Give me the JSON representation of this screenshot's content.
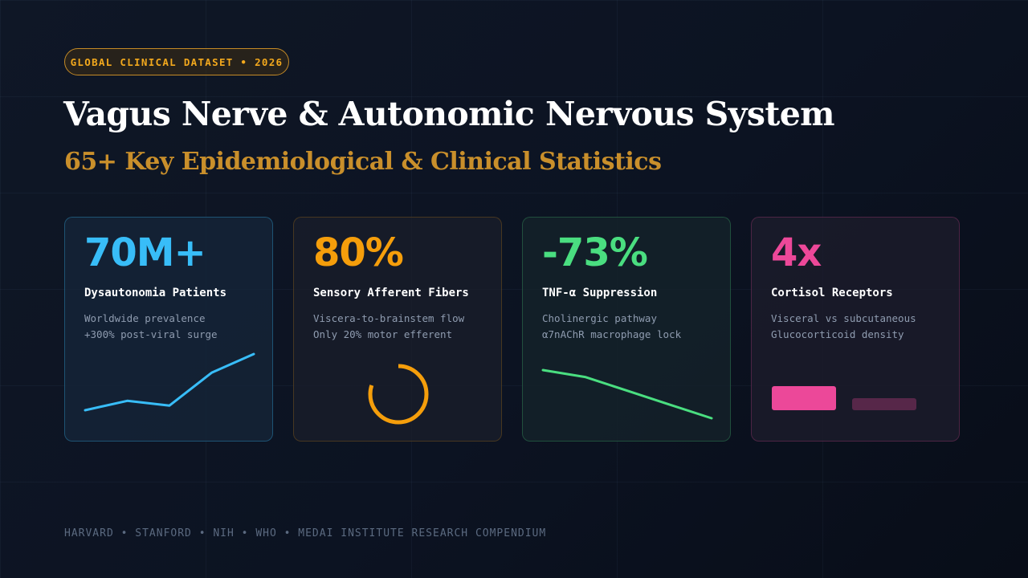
{
  "badge": "GLOBAL CLINICAL DATASET • 2026",
  "title": "Vagus Nerve & Autonomic Nervous System",
  "subtitle": "65+ Key Epidemiological & Clinical Statistics",
  "colors": {
    "blue": "#38bdf8",
    "amber": "#f59e0b",
    "green": "#4ade80",
    "pink": "#ec4899",
    "gold": "#c98f2b"
  },
  "cards": [
    {
      "stat": "70M+",
      "label": "Dysautonomia Patients",
      "desc1": "Worldwide prevalence",
      "desc2": "+300% post-viral surge",
      "viz_type": "line",
      "trend": [
        1,
        2,
        1.5,
        5,
        7
      ]
    },
    {
      "stat": "80%",
      "label": "Sensory Afferent Fibers",
      "desc1": "Viscera-to-brainstem flow",
      "desc2": "Only 20% motor efferent",
      "viz_type": "ring",
      "ring_fraction": 0.8
    },
    {
      "stat": "-73%",
      "label": "TNF-α Suppression",
      "desc1": "Cholinergic pathway",
      "desc2": "α7nAChR macrophage lock",
      "viz_type": "line",
      "trend": [
        6,
        5,
        3,
        1,
        -1
      ]
    },
    {
      "stat": "4x",
      "label": "Cortisol Receptors",
      "desc1": "Visceral vs subcutaneous",
      "desc2": "Glucocorticoid density",
      "viz_type": "bars",
      "bars": [
        4,
        1
      ]
    }
  ],
  "footer": "HARVARD • STANFORD • NIH • WHO • MEDAI INSTITUTE RESEARCH COMPENDIUM"
}
